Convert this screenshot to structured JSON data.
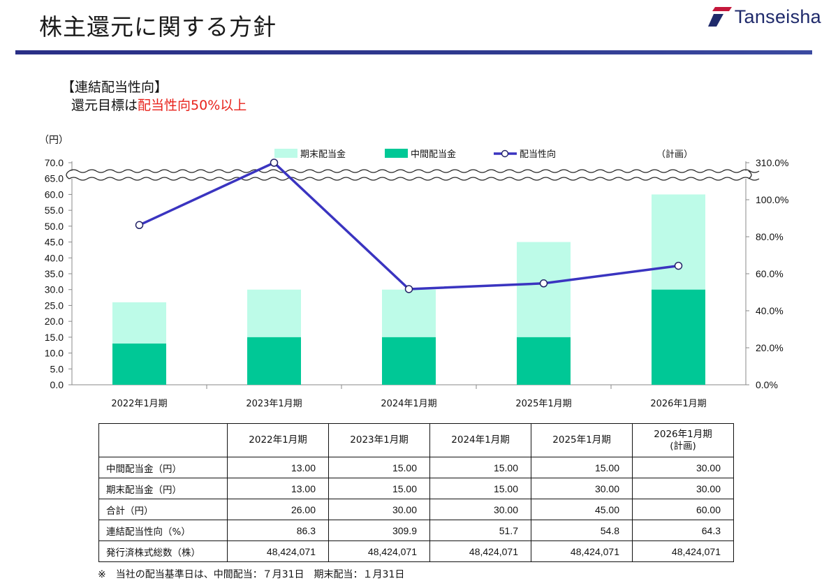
{
  "header": {
    "title": "株主還元に関する方針",
    "logo_text": "Tanseisha",
    "brand_color": "#2a2f86",
    "logo_accent_color": "#c4173b"
  },
  "subhead": {
    "line1": "【連結配当性向】",
    "line2_prefix": "還元目標は",
    "line2_highlight": "配当性向50%以上"
  },
  "chart_data": {
    "type": "bar",
    "stacked": true,
    "categories": [
      "2022年1月期",
      "2023年1月期",
      "2024年1月期",
      "2025年1月期",
      "2026年1月期"
    ],
    "series": [
      {
        "name": "中間配当金",
        "kind": "bar",
        "axis": "left",
        "color": "#00c896",
        "values": [
          13.0,
          15.0,
          15.0,
          15.0,
          30.0
        ]
      },
      {
        "name": "期末配当金",
        "kind": "bar",
        "axis": "left",
        "color": "#bdfbe8",
        "values": [
          13.0,
          15.0,
          15.0,
          30.0,
          30.0
        ]
      },
      {
        "name": "配当性向",
        "kind": "line",
        "axis": "right",
        "color": "#3a34c0",
        "values": [
          86.3,
          309.9,
          51.7,
          54.8,
          64.3
        ]
      }
    ],
    "left_axis": {
      "label": "（円）",
      "min": 0,
      "max": 70,
      "step": 5,
      "ticks": [
        "0.0",
        "5.0",
        "10.0",
        "15.0",
        "20.0",
        "25.0",
        "30.0",
        "35.0",
        "40.0",
        "45.0",
        "50.0",
        "55.0",
        "60.0",
        "65.0",
        "70.0"
      ]
    },
    "right_axis": {
      "min": 0,
      "max": 120,
      "break_top_value": 310,
      "ticks": [
        "0.0%",
        "20.0%",
        "40.0%",
        "60.0%",
        "80.0%",
        "100.0%",
        "310.0%"
      ]
    },
    "axis_break": true,
    "plan_note": "（計画）",
    "legend_position": "top"
  },
  "table": {
    "headers": [
      "",
      "2022年1月期",
      "2023年1月期",
      "2024年1月期",
      "2025年1月期",
      "2026年1月期\n(計画)"
    ],
    "rows": [
      {
        "label": "中間配当金（円）",
        "values": [
          "13.00",
          "15.00",
          "15.00",
          "15.00",
          "30.00"
        ]
      },
      {
        "label": "期末配当金（円）",
        "values": [
          "13.00",
          "15.00",
          "15.00",
          "30.00",
          "30.00"
        ]
      },
      {
        "label": "合計（円）",
        "values": [
          "26.00",
          "30.00",
          "30.00",
          "45.00",
          "60.00"
        ]
      },
      {
        "label": "連結配当性向（%）",
        "values": [
          "86.3",
          "309.9",
          "51.7",
          "54.8",
          "64.3"
        ]
      },
      {
        "label": "発行済株式総数（株）",
        "values": [
          "48,424,071",
          "48,424,071",
          "48,424,071",
          "48,424,071",
          "48,424,071"
        ]
      }
    ]
  },
  "footnote": "※　当社の配当基準日は、中間配当：７月31日　期末配当：１月31日"
}
